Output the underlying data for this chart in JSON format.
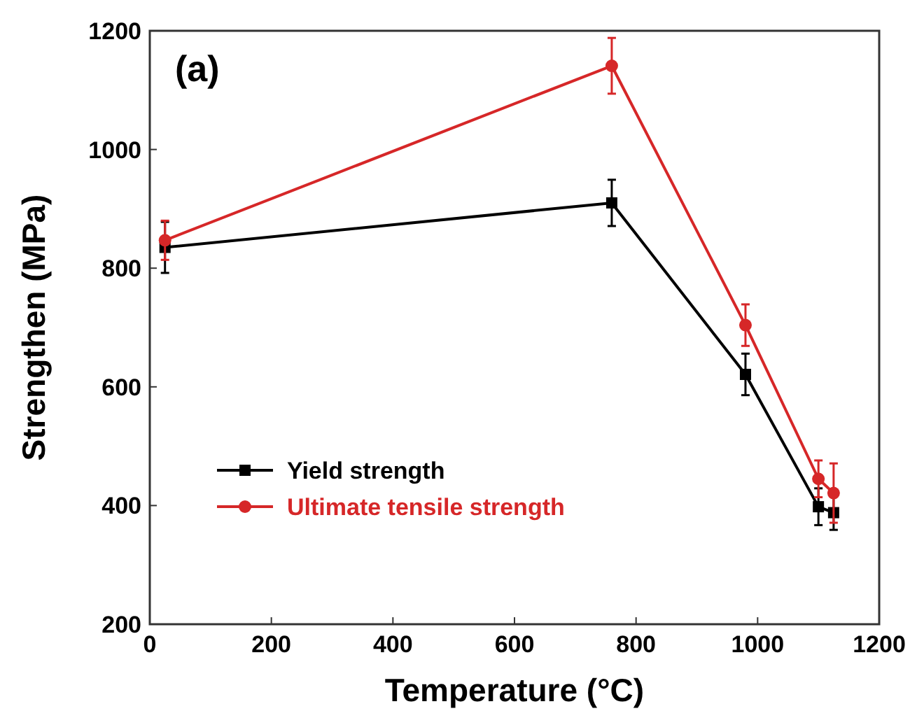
{
  "chart_data": {
    "type": "line",
    "xlabel": "Temperature (°C)",
    "ylabel": "Strengthen (MPa)",
    "annotations": [
      "(a)"
    ],
    "xlim": [
      0,
      1200
    ],
    "xticks": [
      0,
      200,
      400,
      600,
      800,
      1000,
      1200
    ],
    "ylim": [
      200,
      1200
    ],
    "yticks": [
      200,
      400,
      600,
      800,
      1000,
      1200
    ],
    "x": [
      25,
      760,
      980,
      1100,
      1125
    ],
    "grid": false,
    "legend": "bottom left",
    "line_style": "solid",
    "series": [
      {
        "name": "Yield strength",
        "color": "#000000",
        "marker": "square",
        "values": [
          835,
          910,
          621,
          398,
          388
        ],
        "errors": [
          43,
          39,
          35,
          31,
          29
        ]
      },
      {
        "name": "Ultimate tensile strength",
        "color": "#d62728",
        "marker": "circle",
        "values": [
          847,
          1141,
          704,
          445,
          421
        ],
        "errors": [
          33,
          47,
          35,
          31,
          50
        ]
      }
    ]
  }
}
